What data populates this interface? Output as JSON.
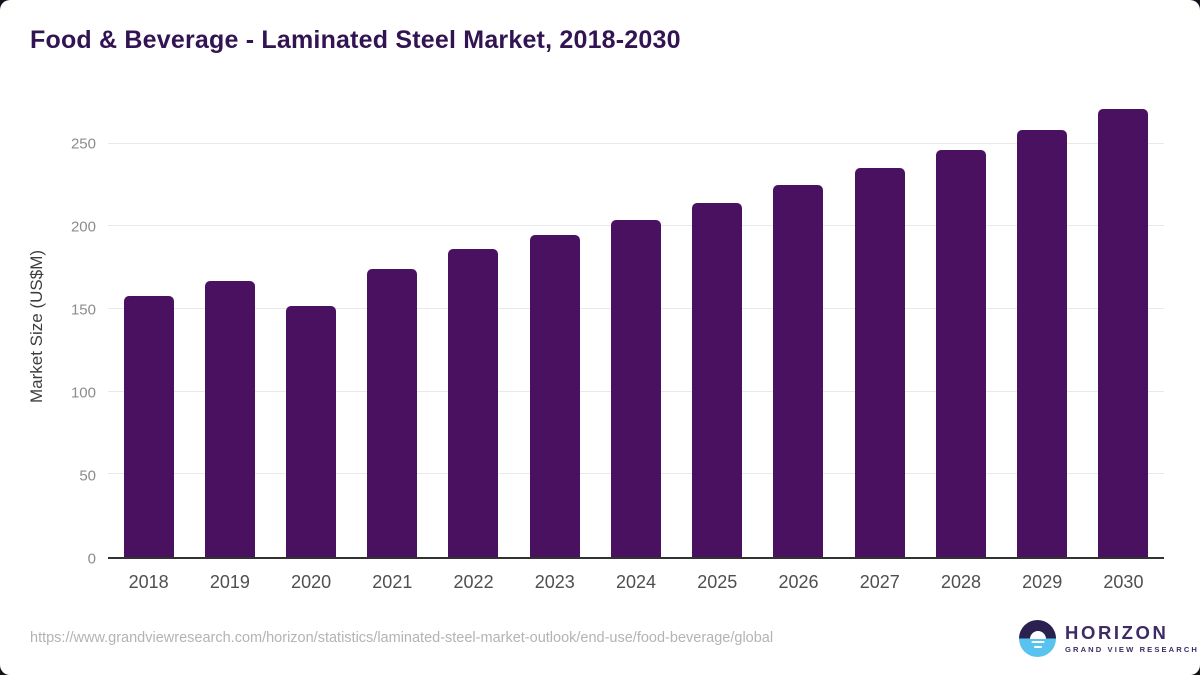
{
  "page": {
    "title": "Food & Beverage - Laminated Steel Market, 2018-2030",
    "source_url": "https://www.grandviewresearch.com/horizon/statistics/laminated-steel-market-outlook/end-use/food-beverage/global"
  },
  "logo": {
    "name": "HORIZON",
    "subtitle": "GRAND VIEW RESEARCH",
    "circle_top_color": "#2b2150",
    "circle_bottom_color": "#58c3ef",
    "text_color": "#3e2b66"
  },
  "colors": {
    "bar": "#4a1161",
    "title_text": "#331453",
    "grid": "#e9e9e9",
    "axis_line": "#323232",
    "y_tick_text": "#8c8c8c",
    "x_tick_text": "#4f4f4f",
    "url_text": "#b3b3b3",
    "page_background": "#ffffff"
  },
  "chart_data": {
    "type": "bar",
    "title": "Food & Beverage - Laminated Steel Market, 2018-2030",
    "categories": [
      "2018",
      "2019",
      "2020",
      "2021",
      "2022",
      "2023",
      "2024",
      "2025",
      "2026",
      "2027",
      "2028",
      "2029",
      "2030"
    ],
    "values": [
      158,
      167,
      152,
      174,
      186,
      195,
      204,
      214,
      225,
      235,
      246,
      258,
      271
    ],
    "xlabel": "",
    "ylabel": "Market Size (US$M)",
    "ylim": [
      0,
      280
    ],
    "yticks": [
      0,
      50,
      100,
      150,
      200,
      250
    ],
    "grid": "horizontal",
    "legend": "none",
    "bar_color": "#4a1161",
    "bar_corner_radius_px": 5
  }
}
